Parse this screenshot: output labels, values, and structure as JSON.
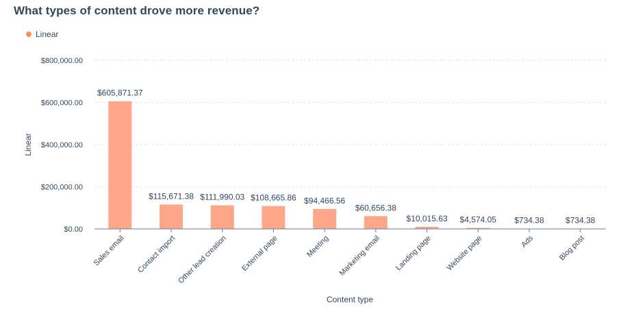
{
  "chart_data": {
    "type": "bar",
    "title": "What types of content drove more revenue?",
    "xlabel": "Content type",
    "ylabel": "Linear",
    "ylim": [
      0,
      800000
    ],
    "yticks": [
      0,
      200000,
      400000,
      600000,
      800000
    ],
    "ytick_labels": [
      "$0.00",
      "$200,000.00",
      "$400,000.00",
      "$600,000.00",
      "$800,000.00"
    ],
    "grid": true,
    "legend_position": "top-left",
    "categories": [
      "Sales email",
      "Contact import",
      "Other lead creation",
      "External page",
      "Meeting",
      "Marketing email",
      "Landing page",
      "Website page",
      "Ads",
      "Blog post"
    ],
    "series": [
      {
        "name": "Linear",
        "color": "#ff8f59",
        "values": [
          605871.37,
          115671.38,
          111990.03,
          108665.86,
          94466.56,
          60656.38,
          10015.63,
          4574.05,
          734.38,
          734.38
        ],
        "labels": [
          "$605,871.37",
          "$115,671.38",
          "$111,990.03",
          "$108,665.86",
          "$94,466.56",
          "$60,656.38",
          "$10,015.63",
          "$4,574.05",
          "$734.38",
          "$734.38"
        ]
      }
    ]
  },
  "colors": {
    "bar": "#ffa68a",
    "legend_dot": "#ff8f59",
    "grid": "#dfe3eb",
    "axis": "#6a7d95",
    "text": "#33475b"
  }
}
